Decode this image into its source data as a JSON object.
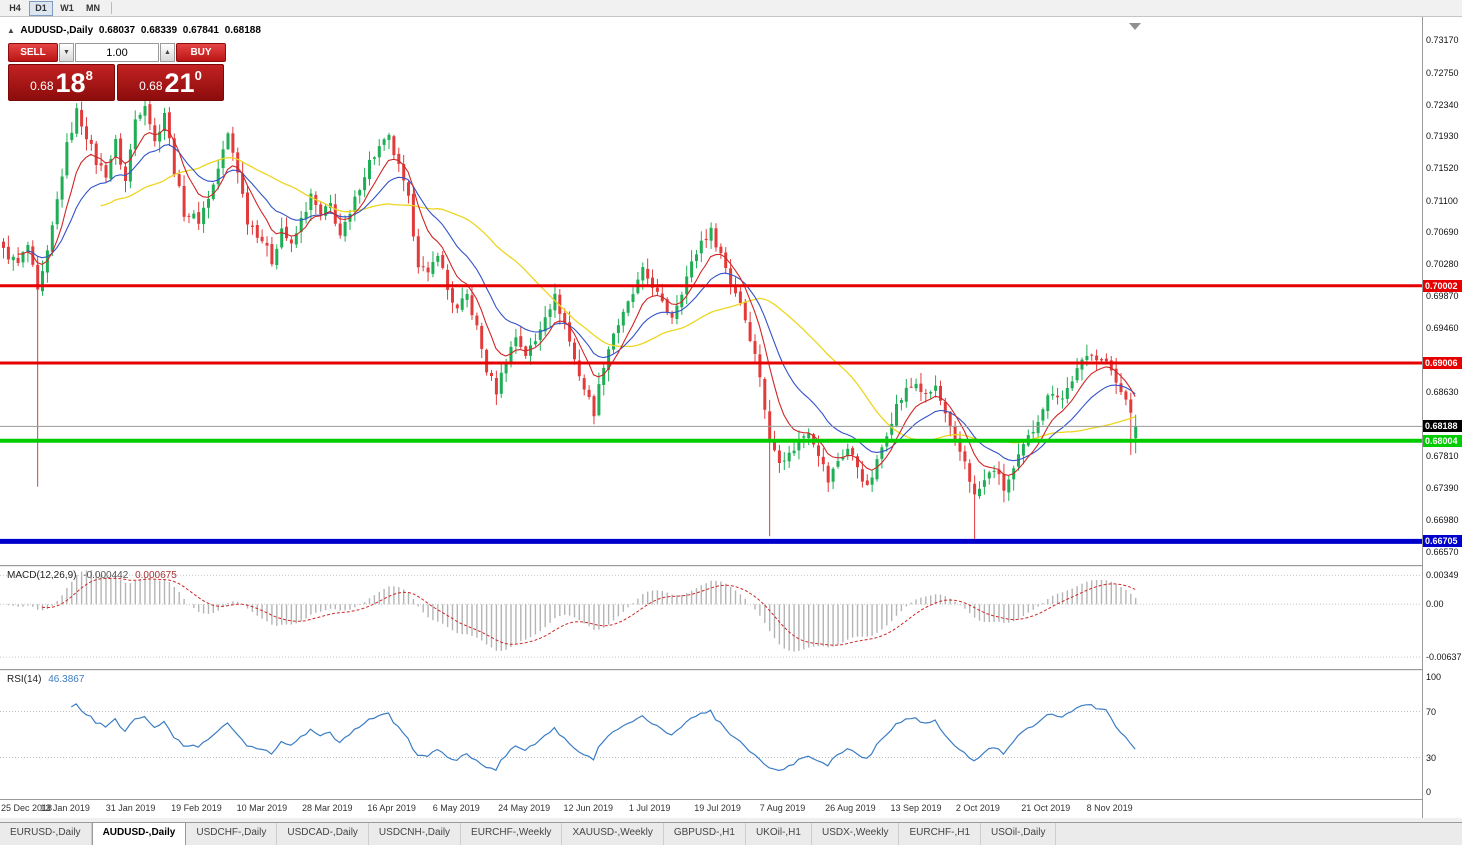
{
  "toolbar": {
    "timeframes": [
      {
        "label": "H4",
        "active": false
      },
      {
        "label": "D1",
        "active": true
      },
      {
        "label": "W1",
        "active": false
      },
      {
        "label": "MN",
        "active": false
      }
    ]
  },
  "icons": {
    "collapse": "▲",
    "spinner_down": "▼",
    "spinner_up": "▲",
    "shift_marker": "triangle-down"
  },
  "chart_header": {
    "symbol": "AUDUSD-,Daily",
    "open": "0.68037",
    "high": "0.68339",
    "low": "0.67841",
    "close": "0.68188"
  },
  "trade_panel": {
    "sell_label": "SELL",
    "buy_label": "BUY",
    "volume": "1.00",
    "sell_price": {
      "prefix": "0.68",
      "big": "18",
      "sup": "8"
    },
    "buy_price": {
      "prefix": "0.68",
      "big": "21",
      "sup": "0"
    }
  },
  "price_axis_ticks": [
    "0.73170",
    "0.72750",
    "0.72340",
    "0.71930",
    "0.71520",
    "0.71100",
    "0.70690",
    "0.70280",
    "0.69870",
    "0.69460",
    "0.68630",
    "0.67810",
    "0.67390",
    "0.66980",
    "0.66570"
  ],
  "levels": [
    {
      "value": 0.70002,
      "label": "0.70002",
      "color": "#e60000",
      "width": 3
    },
    {
      "value": 0.69006,
      "label": "0.69006",
      "color": "#e60000",
      "width": 3
    },
    {
      "value": 0.68004,
      "label": "0.68004",
      "color": "#00cc00",
      "width": 4
    },
    {
      "value": 0.66705,
      "label": "0.66705",
      "color": "#0000cc",
      "width": 5
    }
  ],
  "current_price": {
    "value": 0.68188,
    "label": "0.68188"
  },
  "macd_panel": {
    "title": "MACD(12,26,9)",
    "value1": "-0.000442",
    "value2": "0.000675",
    "params": [
      12,
      26,
      9
    ],
    "scale_top": 0.0045,
    "scale_bottom": -0.0078,
    "axis_labels": [
      {
        "v": 0.00349,
        "label": "0.00349"
      },
      {
        "v": 0,
        "label": "0.00"
      },
      {
        "v": -0.00637,
        "label": "-0.00637"
      }
    ]
  },
  "rsi_panel": {
    "title": "RSI(14)",
    "value": "46.3867",
    "period": 14,
    "axis_labels": [
      {
        "v": 100,
        "label": "100"
      },
      {
        "v": 70,
        "label": "70"
      },
      {
        "v": 30,
        "label": "30"
      },
      {
        "v": 0,
        "label": "0"
      }
    ]
  },
  "chart_data": {
    "type": "candlestick",
    "symbol": "AUDUSD",
    "timeframe": "Daily",
    "ylim": [
      0.664,
      0.7347
    ],
    "num_candles": 233,
    "candles_per_label": 13.4,
    "x_labels": [
      "25 Dec 2018",
      "13 Jan 2019",
      "31 Jan 2019",
      "19 Feb 2019",
      "10 Mar 2019",
      "28 Mar 2019",
      "16 Apr 2019",
      "6 May 2019",
      "24 May 2019",
      "12 Jun 2019",
      "1 Jul 2019",
      "19 Jul 2019",
      "7 Aug 2019",
      "26 Aug 2019",
      "13 Sep 2019",
      "2 Oct 2019",
      "21 Oct 2019",
      "8 Nov 2019"
    ],
    "price_path": [
      [
        0,
        0.7045
      ],
      [
        3,
        0.7028
      ],
      [
        5,
        0.7052
      ],
      [
        7,
        0.699
      ],
      [
        9,
        0.704
      ],
      [
        11,
        0.711
      ],
      [
        13,
        0.718
      ],
      [
        15,
        0.7225
      ],
      [
        17,
        0.7195
      ],
      [
        19,
        0.716
      ],
      [
        21,
        0.7145
      ],
      [
        23,
        0.7185
      ],
      [
        25,
        0.7135
      ],
      [
        27,
        0.7215
      ],
      [
        29,
        0.7238
      ],
      [
        31,
        0.7185
      ],
      [
        33,
        0.7225
      ],
      [
        35,
        0.715
      ],
      [
        37,
        0.7095
      ],
      [
        40,
        0.7085
      ],
      [
        43,
        0.713
      ],
      [
        46,
        0.7195
      ],
      [
        48,
        0.715
      ],
      [
        50,
        0.7085
      ],
      [
        53,
        0.706
      ],
      [
        55,
        0.7032
      ],
      [
        57,
        0.7075
      ],
      [
        59,
        0.705
      ],
      [
        61,
        0.7085
      ],
      [
        63,
        0.7115
      ],
      [
        65,
        0.709
      ],
      [
        67,
        0.7105
      ],
      [
        69,
        0.7065
      ],
      [
        71,
        0.709
      ],
      [
        73,
        0.713
      ],
      [
        75,
        0.716
      ],
      [
        77,
        0.7178
      ],
      [
        79,
        0.719
      ],
      [
        81,
        0.7152
      ],
      [
        83,
        0.711
      ],
      [
        85,
        0.703
      ],
      [
        87,
        0.7012
      ],
      [
        89,
        0.7045
      ],
      [
        91,
        0.6995
      ],
      [
        93,
        0.6968
      ],
      [
        95,
        0.6988
      ],
      [
        97,
        0.6945
      ],
      [
        99,
        0.6892
      ],
      [
        101,
        0.6865
      ],
      [
        103,
        0.6905
      ],
      [
        105,
        0.6935
      ],
      [
        107,
        0.6912
      ],
      [
        109,
        0.6928
      ],
      [
        111,
        0.6965
      ],
      [
        113,
        0.6985
      ],
      [
        115,
        0.6952
      ],
      [
        117,
        0.6905
      ],
      [
        119,
        0.6868
      ],
      [
        121,
        0.6838
      ],
      [
        123,
        0.69
      ],
      [
        125,
        0.694
      ],
      [
        127,
        0.6962
      ],
      [
        129,
        0.699
      ],
      [
        131,
        0.7018
      ],
      [
        133,
        0.7002
      ],
      [
        135,
        0.6975
      ],
      [
        137,
        0.6962
      ],
      [
        139,
        0.6995
      ],
      [
        141,
        0.7028
      ],
      [
        143,
        0.7058
      ],
      [
        145,
        0.707
      ],
      [
        147,
        0.7042
      ],
      [
        149,
        0.7005
      ],
      [
        151,
        0.698
      ],
      [
        153,
        0.6935
      ],
      [
        155,
        0.6885
      ],
      [
        157,
        0.68
      ],
      [
        159,
        0.6778
      ],
      [
        161,
        0.6782
      ],
      [
        163,
        0.68
      ],
      [
        165,
        0.6815
      ],
      [
        167,
        0.6786
      ],
      [
        169,
        0.6748
      ],
      [
        171,
        0.6775
      ],
      [
        173,
        0.679
      ],
      [
        175,
        0.6768
      ],
      [
        177,
        0.6738
      ],
      [
        179,
        0.6772
      ],
      [
        181,
        0.6812
      ],
      [
        183,
        0.6845
      ],
      [
        185,
        0.6865
      ],
      [
        187,
        0.6875
      ],
      [
        189,
        0.6856
      ],
      [
        191,
        0.687
      ],
      [
        193,
        0.6832
      ],
      [
        195,
        0.6796
      ],
      [
        197,
        0.6775
      ],
      [
        199,
        0.6728
      ],
      [
        201,
        0.6748
      ],
      [
        203,
        0.6765
      ],
      [
        205,
        0.6738
      ],
      [
        207,
        0.6762
      ],
      [
        209,
        0.6792
      ],
      [
        211,
        0.6815
      ],
      [
        213,
        0.6845
      ],
      [
        215,
        0.6866
      ],
      [
        217,
        0.6855
      ],
      [
        219,
        0.688
      ],
      [
        221,
        0.69
      ],
      [
        223,
        0.6916
      ],
      [
        225,
        0.6904
      ],
      [
        227,
        0.6892
      ],
      [
        229,
        0.6868
      ],
      [
        231,
        0.6832
      ],
      [
        232,
        0.6819
      ]
    ],
    "special_lows": [
      [
        7,
        0.6741
      ],
      [
        157,
        0.6677
      ],
      [
        199,
        0.6671
      ],
      [
        231,
        0.6782
      ]
    ],
    "special_highs": [
      [
        29,
        0.7262
      ],
      [
        145,
        0.7082
      ]
    ],
    "last_candle": {
      "o": 0.68037,
      "h": 0.68339,
      "l": 0.67841,
      "c": 0.68188
    }
  },
  "bottom_tabs": [
    {
      "label": "EURUSD-,Daily",
      "active": false
    },
    {
      "label": "AUDUSD-,Daily",
      "active": true
    },
    {
      "label": "USDCHF-,Daily",
      "active": false
    },
    {
      "label": "USDCAD-,Daily",
      "active": false
    },
    {
      "label": "USDCNH-,Daily",
      "active": false
    },
    {
      "label": "EURCHF-,Weekly",
      "active": false
    },
    {
      "label": "XAUUSD-,Weekly",
      "active": false
    },
    {
      "label": "GBPUSD-,H1",
      "active": false
    },
    {
      "label": "UKOil-,H1",
      "active": false
    },
    {
      "label": "USDX-,Weekly",
      "active": false
    },
    {
      "label": "EURCHF-,H1",
      "active": false
    },
    {
      "label": "USOil-,Daily",
      "active": false
    }
  ],
  "colors": {
    "candle_up": "#1fae55",
    "candle_down": "#e23b3b",
    "ma_fast": "#cf2626",
    "ma_mid": "#3252c9",
    "ma_slow": "#ecd622",
    "macd_histogram": "#b5b5b5",
    "macd_signal": "#cc2a2a",
    "rsi_line": "#3b7dc4",
    "current_price_line": "#9a9a9a"
  }
}
